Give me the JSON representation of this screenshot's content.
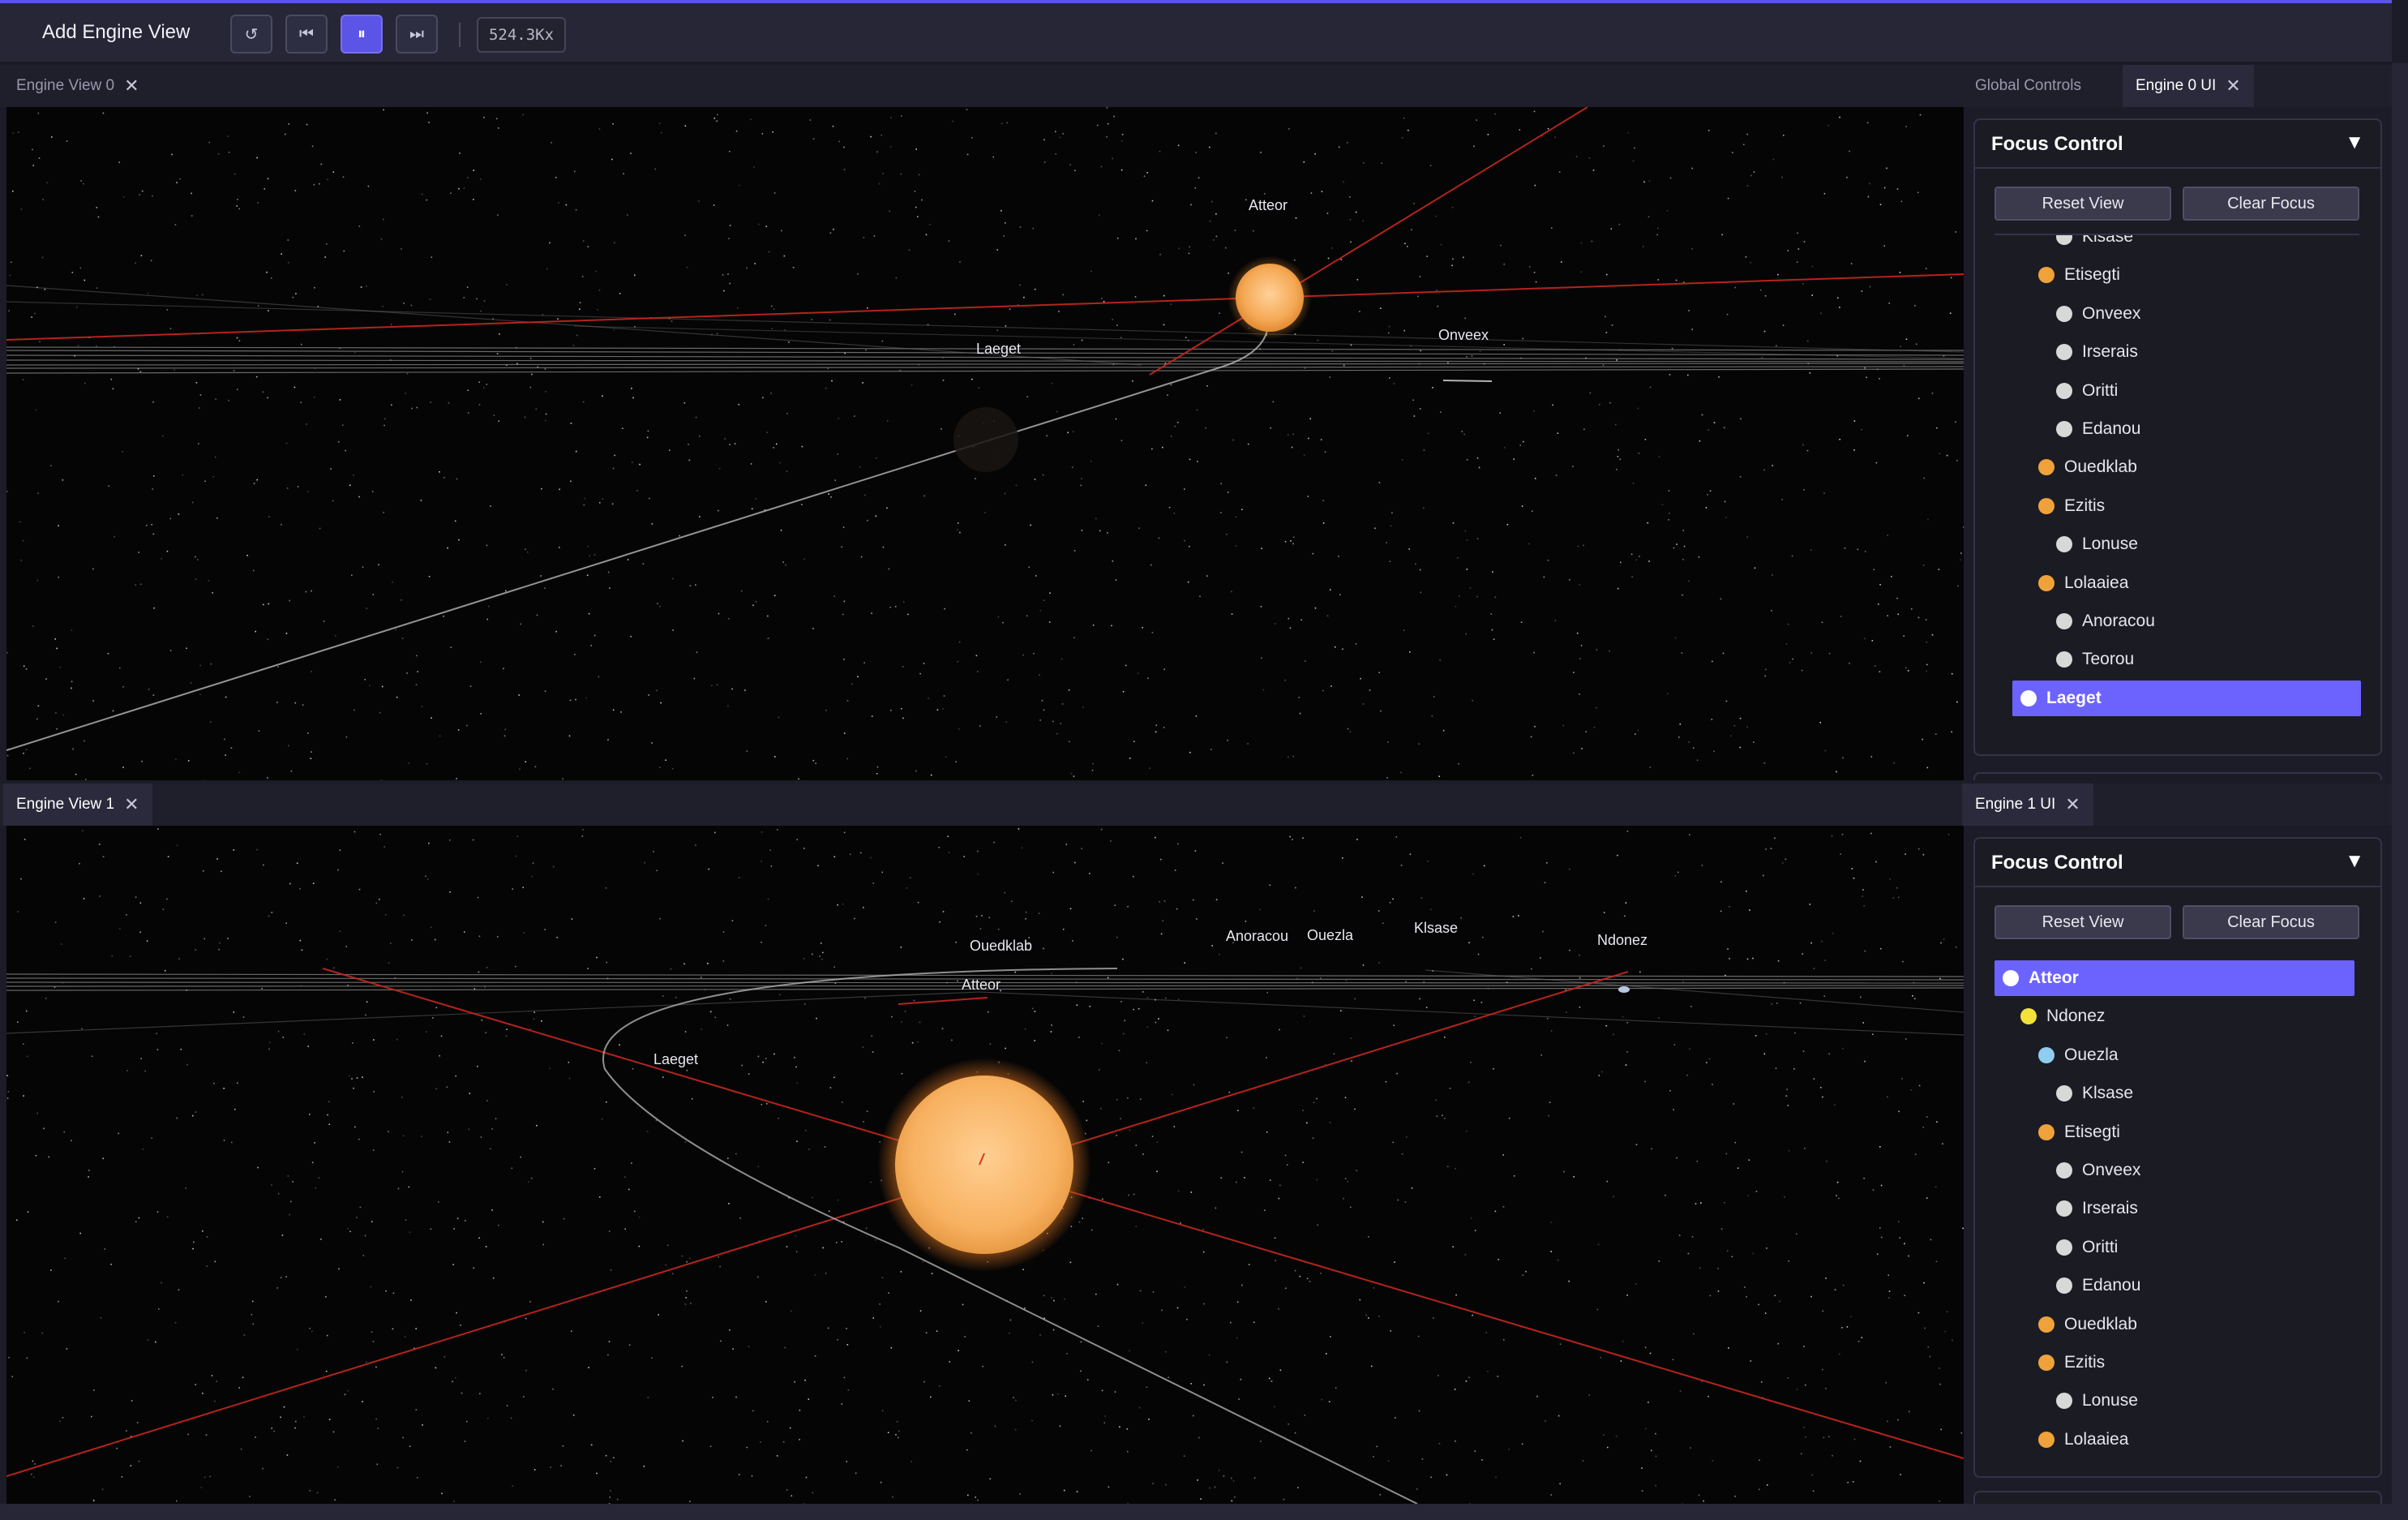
{
  "toolbar": {
    "add_view_label": "Add Engine View",
    "reset_glyph": "↺",
    "back_glyph": "⏮",
    "pause_glyph": "⏸",
    "forward_glyph": "⏭",
    "speed": "524.3Kx"
  },
  "views": {
    "top_tab": "Engine View 0",
    "bottom_tab": "Engine View 1",
    "close_glyph": "✕"
  },
  "top_labels": {
    "atteor": "Atteor",
    "laeget": "Laeget",
    "onveex": "Onveex"
  },
  "bottom_labels": {
    "ouedklab": "Ouedklab",
    "atteor": "Atteor",
    "anoracou": "Anoracou",
    "ouezla": "Ouezla",
    "klsase": "Klsase",
    "ndonez": "Ndonez",
    "laeget": "Laeget"
  },
  "panels": {
    "global_tab": "Global Controls",
    "engine0_tab": "Engine 0 UI",
    "engine1_tab": "Engine 1 UI",
    "title": "Focus Control",
    "toggle": "▼",
    "reset_label": "Reset View",
    "clear_label": "Clear Focus"
  },
  "focus_list_0": [
    {
      "label": "Klsase",
      "color": "#d8d8d8",
      "level": 2
    },
    {
      "label": "Etisegti",
      "color": "#f0a23a",
      "level": 1
    },
    {
      "label": "Onveex",
      "color": "#d8d8d8",
      "level": 2
    },
    {
      "label": "Irserais",
      "color": "#d8d8d8",
      "level": 2
    },
    {
      "label": "Oritti",
      "color": "#d8d8d8",
      "level": 2
    },
    {
      "label": "Edanou",
      "color": "#d8d8d8",
      "level": 2
    },
    {
      "label": "Ouedklab",
      "color": "#f0a23a",
      "level": 1
    },
    {
      "label": "Ezitis",
      "color": "#f0a23a",
      "level": 1
    },
    {
      "label": "Lonuse",
      "color": "#d8d8d8",
      "level": 2
    },
    {
      "label": "Lolaaiea",
      "color": "#f0a23a",
      "level": 1
    },
    {
      "label": "Anoracou",
      "color": "#d8d8d8",
      "level": 2
    },
    {
      "label": "Teorou",
      "color": "#d8d8d8",
      "level": 2
    },
    {
      "label": "Laeget",
      "color": "#ffffff",
      "level": 0,
      "selected": true
    }
  ],
  "focus_list_1": [
    {
      "label": "Atteor",
      "color": "#ffffff",
      "level": 0,
      "selected": true
    },
    {
      "label": "Ndonez",
      "color": "#f2e23a",
      "level": 1
    },
    {
      "label": "Ouezla",
      "color": "#8ecdf0",
      "level": 2
    },
    {
      "label": "Klsase",
      "color": "#d8d8d8",
      "level": 3
    },
    {
      "label": "Etisegti",
      "color": "#f0a23a",
      "level": 2
    },
    {
      "label": "Onveex",
      "color": "#d8d8d8",
      "level": 3
    },
    {
      "label": "Irserais",
      "color": "#d8d8d8",
      "level": 3
    },
    {
      "label": "Oritti",
      "color": "#d8d8d8",
      "level": 3
    },
    {
      "label": "Edanou",
      "color": "#d8d8d8",
      "level": 3
    },
    {
      "label": "Ouedklab",
      "color": "#f0a23a",
      "level": 2
    },
    {
      "label": "Ezitis",
      "color": "#f0a23a",
      "level": 2
    },
    {
      "label": "Lonuse",
      "color": "#d8d8d8",
      "level": 3
    },
    {
      "label": "Lolaaiea",
      "color": "#f0a23a",
      "level": 2
    }
  ]
}
